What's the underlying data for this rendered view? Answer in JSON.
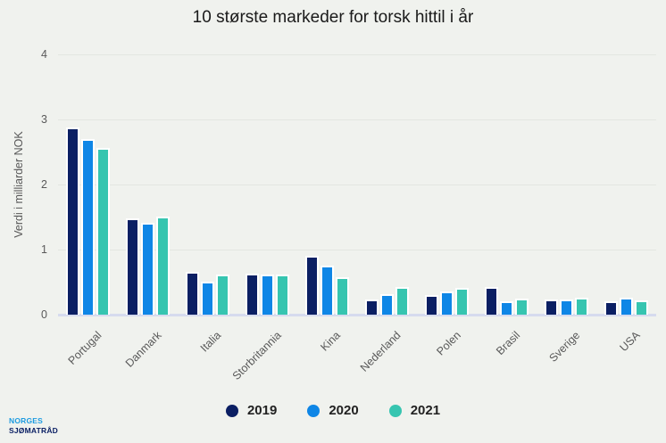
{
  "title": "10 største markeder for torsk hittil i år",
  "chart_data": {
    "type": "bar",
    "categories": [
      "Portugal",
      "Danmark",
      "Italia",
      "Storbritannia",
      "Kina",
      "Nederland",
      "Polen",
      "Brasil",
      "Sverige",
      "USA"
    ],
    "series": [
      {
        "name": "2019",
        "color": "#0b1f63",
        "values": [
          2.87,
          1.48,
          0.66,
          0.63,
          0.91,
          0.23,
          0.3,
          0.42,
          0.23,
          0.21
        ]
      },
      {
        "name": "2020",
        "color": "#0e86e6",
        "values": [
          2.7,
          1.41,
          0.51,
          0.61,
          0.76,
          0.32,
          0.35,
          0.21,
          0.23,
          0.26
        ]
      },
      {
        "name": "2021",
        "color": "#36c5b0",
        "values": [
          2.56,
          1.5,
          0.62,
          0.61,
          0.58,
          0.43,
          0.41,
          0.24,
          0.26,
          0.22
        ]
      }
    ],
    "ylabel": "Verdi i milliarder NOK",
    "xlabel": "",
    "yticks": [
      0,
      1,
      2,
      3,
      4
    ],
    "ylim": [
      0,
      4
    ],
    "grid": true,
    "legend_position": "bottom"
  },
  "logo": {
    "line1": "NORGES",
    "line2": "SJØMATRÅD"
  },
  "colors": {
    "background": "#f0f2ee",
    "grid": "#e3e6e1",
    "baseline": "#d6dbee",
    "title_text": "#1a1a1a",
    "axis_text": "#595959",
    "legend_text": "#222222",
    "logo_primary": "#1d9be0",
    "logo_secondary": "#0b2064"
  }
}
